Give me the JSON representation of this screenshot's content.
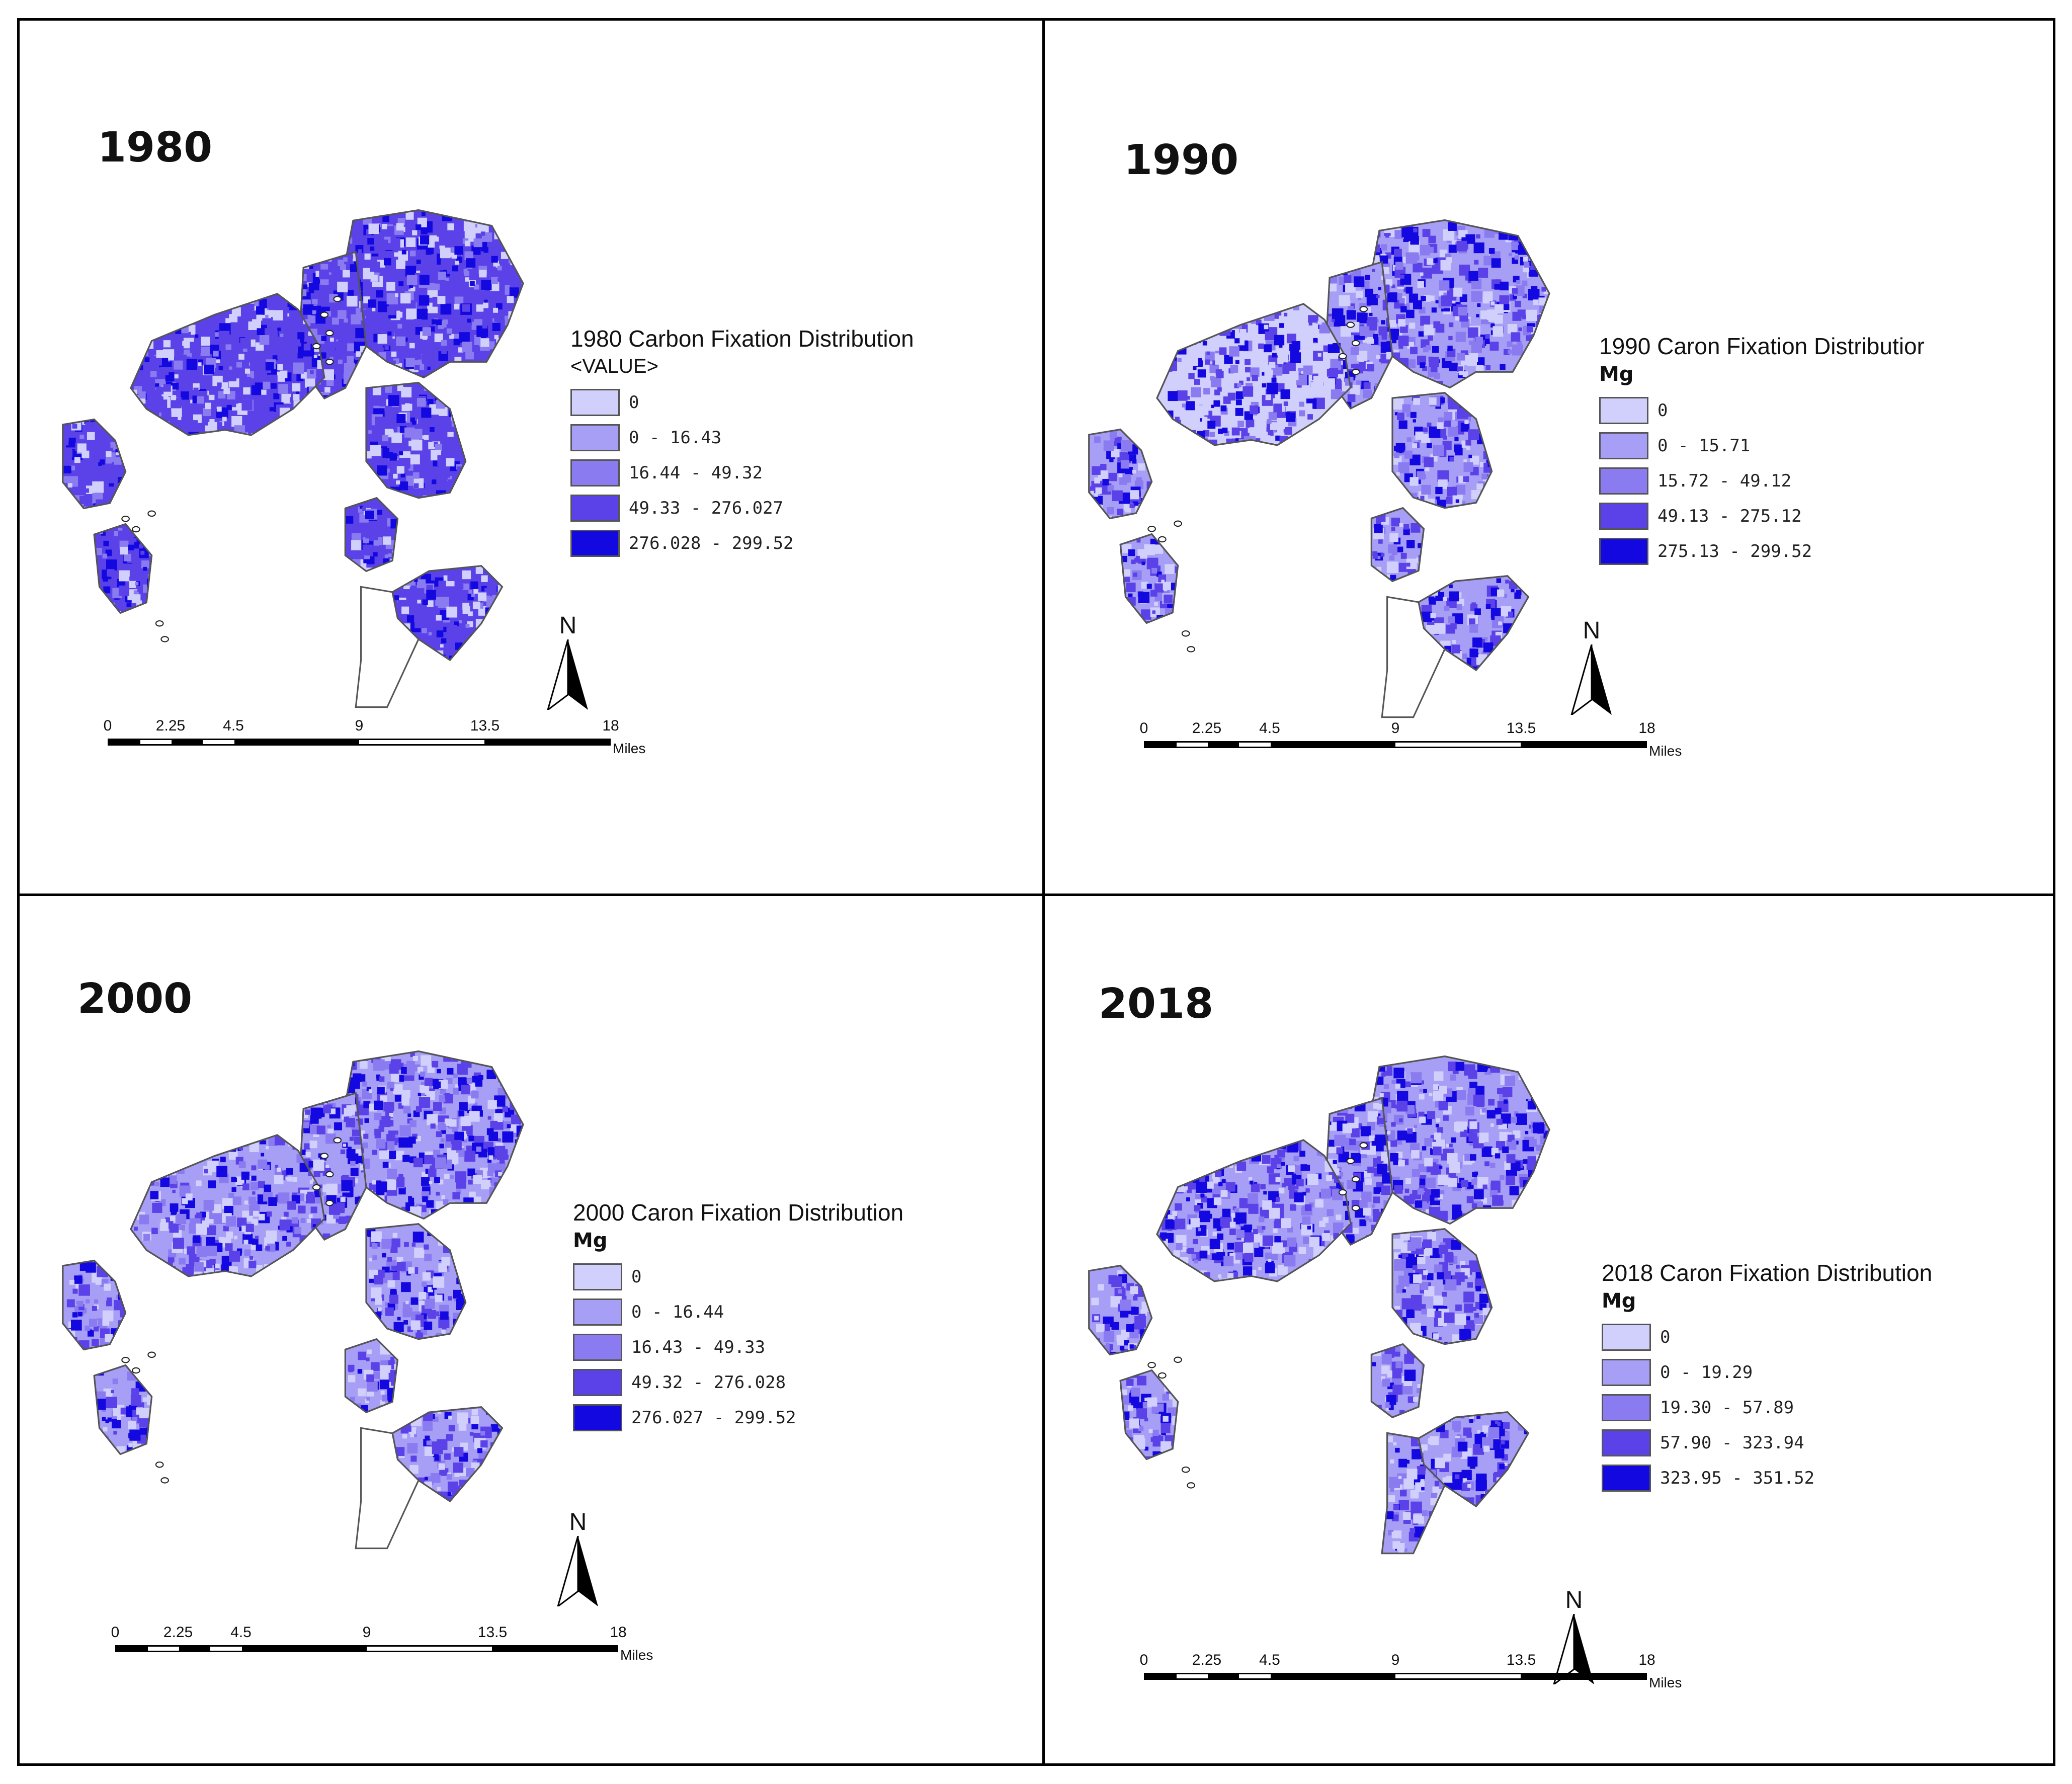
{
  "colors": {
    "class0": "#d1cffb",
    "class1": "#a79ef5",
    "class2": "#8a7cf0",
    "class3": "#5a42e8",
    "class4": "#1408e0",
    "outline": "#555555"
  },
  "panels": [
    {
      "year": "1980",
      "legend_title": "1980 Carbon Fixation Distribution",
      "legend_unit": "<VALUE>",
      "classes": [
        {
          "label": "0"
        },
        {
          "label": "0 - 16.43"
        },
        {
          "label": "16.44 - 49.32"
        },
        {
          "label": "49.33 - 276.027"
        },
        {
          "label": "276.028 - 299.52"
        }
      ],
      "scale_ticks": [
        "0",
        "2.25",
        "4.5",
        "9",
        "13.5",
        "18"
      ],
      "scale_unit": "Miles",
      "north_label": "N"
    },
    {
      "year": "1990",
      "legend_title": "1990 Caron Fixation Distributior",
      "legend_unit": "Mg",
      "classes": [
        {
          "label": "0"
        },
        {
          "label": "0 - 15.71"
        },
        {
          "label": "15.72 - 49.12"
        },
        {
          "label": "49.13 - 275.12"
        },
        {
          "label": "275.13 - 299.52"
        }
      ],
      "scale_ticks": [
        "0",
        "2.25",
        "4.5",
        "9",
        "13.5",
        "18"
      ],
      "scale_unit": "Miles",
      "north_label": "N"
    },
    {
      "year": "2000",
      "legend_title": "2000 Caron Fixation Distribution",
      "legend_unit": "Mg",
      "classes": [
        {
          "label": "0"
        },
        {
          "label": "0 - 16.44"
        },
        {
          "label": "16.43 - 49.33"
        },
        {
          "label": "49.32 - 276.028"
        },
        {
          "label": "276.027 - 299.52"
        }
      ],
      "scale_ticks": [
        "0",
        "2.25",
        "4.5",
        "9",
        "13.5",
        "18"
      ],
      "scale_unit": "Miles",
      "north_label": "N"
    },
    {
      "year": "2018",
      "legend_title": "2018 Caron Fixation Distribution",
      "legend_unit": "Mg",
      "classes": [
        {
          "label": "0"
        },
        {
          "label": "0 - 19.29"
        },
        {
          "label": "19.30 - 57.89"
        },
        {
          "label": "57.90 - 323.94"
        },
        {
          "label": "323.95 - 351.52"
        }
      ],
      "scale_ticks": [
        "0",
        "2.25",
        "4.5",
        "9",
        "13.5",
        "18"
      ],
      "scale_unit": "Miles",
      "north_label": "N"
    }
  ]
}
